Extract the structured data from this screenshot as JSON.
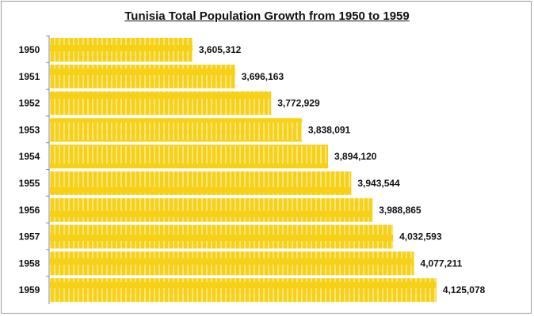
{
  "chart_data": {
    "type": "bar",
    "orientation": "horizontal",
    "title": "Tunisia Total Population Growth from 1950 to 1959",
    "categories": [
      "1950",
      "1951",
      "1952",
      "1953",
      "1954",
      "1955",
      "1956",
      "1957",
      "1958",
      "1959"
    ],
    "values": [
      3605312,
      3696163,
      3772929,
      3838091,
      3894120,
      3943544,
      3988865,
      4032593,
      4077211,
      4125078
    ],
    "data_labels": [
      "3,605,312",
      "3,696,163",
      "3,772,929",
      "3,838,091",
      "3,894,120",
      "3,943,544",
      "3,988,865",
      "4,032,593",
      "4,077,211",
      "4,125,078"
    ],
    "xlim": [
      3300000,
      4200000
    ],
    "grid": false,
    "legend": "none",
    "colors": {
      "bar": "#f7d117",
      "bar_stripe": "#fbe57a",
      "axis": "#888888",
      "text": "#111111"
    }
  }
}
